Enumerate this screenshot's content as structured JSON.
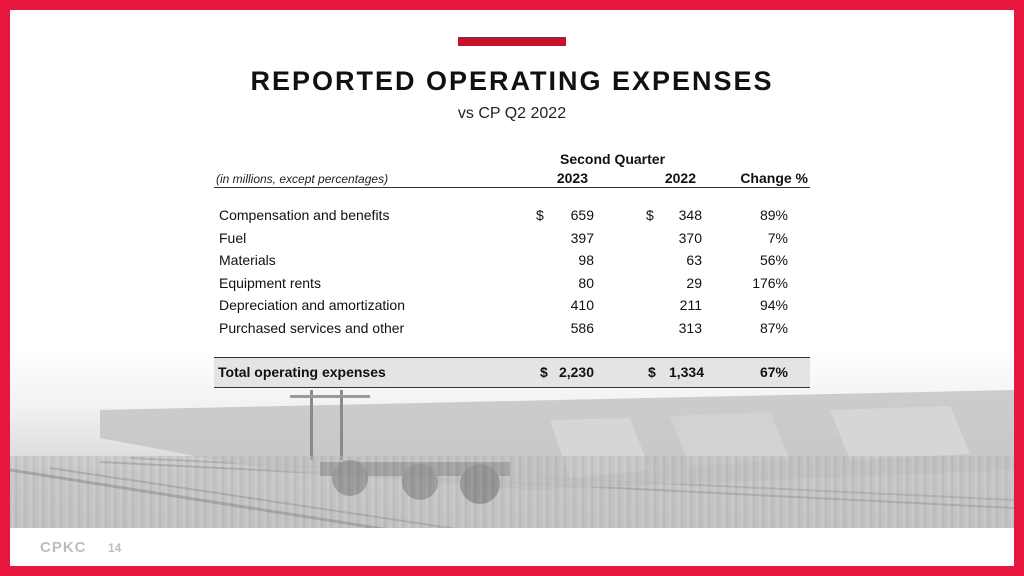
{
  "slide": {
    "title": "REPORTED OPERATING EXPENSES",
    "subtitle": "vs CP Q2 2022",
    "brand": "CPKC",
    "page_number": "14"
  },
  "table": {
    "period_header": "Second Quarter",
    "units_note": "(in millions, except percentages)",
    "columns": [
      "2023",
      "2022",
      "Change %"
    ],
    "rows": [
      {
        "label": "Compensation and benefits",
        "dollar_2023": "$",
        "v2023": "659",
        "dollar_2022": "$",
        "v2022": "348",
        "change": "89%"
      },
      {
        "label": "Fuel",
        "dollar_2023": "",
        "v2023": "397",
        "dollar_2022": "",
        "v2022": "370",
        "change": "7%"
      },
      {
        "label": "Materials",
        "dollar_2023": "",
        "v2023": "98",
        "dollar_2022": "",
        "v2022": "63",
        "change": "56%"
      },
      {
        "label": "Equipment rents",
        "dollar_2023": "",
        "v2023": "80",
        "dollar_2022": "",
        "v2022": "29",
        "change": "176%"
      },
      {
        "label": "Depreciation and amortization",
        "dollar_2023": "",
        "v2023": "410",
        "dollar_2022": "",
        "v2022": "211",
        "change": "94%"
      },
      {
        "label": "Purchased services and other",
        "dollar_2023": "",
        "v2023": "586",
        "dollar_2022": "",
        "v2022": "313",
        "change": "87%"
      }
    ],
    "total": {
      "label": "Total operating expenses",
      "dollar_2023": "$",
      "v2023": "2,230",
      "dollar_2022": "$",
      "v2022": "1,334",
      "change": "67%"
    }
  },
  "colors": {
    "border": "#e8163c",
    "accent": "#c8102e"
  }
}
